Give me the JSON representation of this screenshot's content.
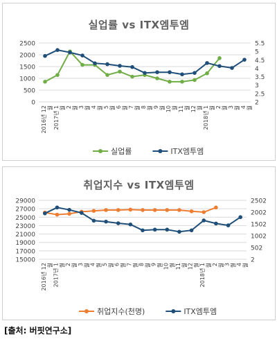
{
  "source_note": "[출처: 버핏연구소]",
  "chart_data": [
    {
      "type": "line",
      "title": "실업률 vs ITX엠투엠",
      "categories": [
        "2016년 12월",
        "2017년 1월",
        "2월",
        "3월",
        "4월",
        "5월",
        "6월",
        "7월",
        "8월",
        "9월",
        "10월",
        "11월",
        "12월",
        "2018년 1월",
        "2월",
        "3월",
        "4월"
      ],
      "tick_labels": [
        {
          "lines": [
            "2016년 12",
            "월"
          ]
        },
        {
          "lines": [
            "2017년 1",
            "월"
          ]
        },
        {
          "lines": [
            "2",
            "월"
          ]
        },
        {
          "lines": [
            "3",
            "월"
          ]
        },
        {
          "lines": [
            "4",
            "월"
          ]
        },
        {
          "lines": [
            "5",
            "월"
          ]
        },
        {
          "lines": [
            "6",
            "월"
          ]
        },
        {
          "lines": [
            "7",
            "월"
          ]
        },
        {
          "lines": [
            "8",
            "월"
          ]
        },
        {
          "lines": [
            "9",
            "월"
          ]
        },
        {
          "lines": [
            "10",
            "월"
          ]
        },
        {
          "lines": [
            "11",
            "월"
          ]
        },
        {
          "lines": [
            "12",
            "월"
          ]
        },
        {
          "lines": [
            "2018년 1",
            "월"
          ]
        },
        {
          "lines": [
            "2",
            "월"
          ]
        },
        {
          "lines": [
            "3",
            "월"
          ]
        },
        {
          "lines": [
            "4",
            "월"
          ]
        }
      ],
      "y_left": {
        "min": 0,
        "max": 2500,
        "ticks": [
          "0",
          "500",
          "1000",
          "1500",
          "2000",
          "2500"
        ]
      },
      "y_right": {
        "min": 2,
        "max": 5.5,
        "ticks": [
          "2",
          "2.5",
          "3",
          "3.5",
          "4",
          "4.5",
          "5",
          "5.5"
        ]
      },
      "series": [
        {
          "name": "실업률",
          "axis": "right",
          "color": "#70ad47",
          "values": [
            3.2,
            3.6,
            5.0,
            4.2,
            4.2,
            3.6,
            3.8,
            3.5,
            3.6,
            3.4,
            3.2,
            3.2,
            3.3,
            3.7,
            4.6,
            null,
            null
          ]
        },
        {
          "name": "ITX엠투엠",
          "axis": "left",
          "color": "#1f4e79",
          "values": [
            1950,
            2200,
            2100,
            1970,
            1640,
            1600,
            1530,
            1480,
            1230,
            1260,
            1260,
            1170,
            1230,
            1650,
            1520,
            1440,
            1790
          ]
        }
      ],
      "legend_position": "bottom",
      "grid": true
    },
    {
      "type": "line",
      "title": "취업지수 vs ITX엠투엠",
      "categories": [
        "2016년 12월",
        "2017년 1월",
        "2월",
        "3월",
        "4월",
        "5월",
        "6월",
        "7월",
        "8월",
        "9월",
        "10월",
        "11월",
        "12월",
        "2018년 1월",
        "2월",
        "3월",
        "4월"
      ],
      "tick_labels": [
        {
          "lines": [
            "2016년 12",
            "월"
          ]
        },
        {
          "lines": [
            "2017년 1",
            "월"
          ]
        },
        {
          "lines": [
            "2",
            "월"
          ]
        },
        {
          "lines": [
            "3",
            "월"
          ]
        },
        {
          "lines": [
            "4",
            "월"
          ]
        },
        {
          "lines": [
            "5",
            "월"
          ]
        },
        {
          "lines": [
            "6",
            "월"
          ]
        },
        {
          "lines": [
            "7",
            "월"
          ]
        },
        {
          "lines": [
            "8",
            "월"
          ]
        },
        {
          "lines": [
            "9",
            "월"
          ]
        },
        {
          "lines": [
            "10",
            "월"
          ]
        },
        {
          "lines": [
            "11",
            "월"
          ]
        },
        {
          "lines": [
            "12",
            "월"
          ]
        },
        {
          "lines": [
            "2018년 1",
            "월"
          ]
        },
        {
          "lines": [
            "2",
            "월"
          ]
        },
        {
          "lines": [
            "3",
            "월"
          ]
        },
        {
          "lines": [
            "4",
            "월"
          ]
        }
      ],
      "y_left": {
        "min": 15000,
        "max": 29000,
        "ticks": [
          "15000",
          "17000",
          "19000",
          "21000",
          "23000",
          "25000",
          "27000",
          "29000"
        ]
      },
      "y_right": {
        "min": 2,
        "max": 2502,
        "ticks": [
          "2",
          "502",
          "1002",
          "1502",
          "2002",
          "2502"
        ]
      },
      "series": [
        {
          "name": "취업지수(천명)",
          "axis": "left",
          "color": "#ed7d31",
          "values": [
            26100,
            25600,
            25800,
            26300,
            26500,
            26700,
            26700,
            26800,
            26700,
            26700,
            26700,
            26700,
            26400,
            26200,
            27300,
            null,
            null
          ]
        },
        {
          "name": "ITX엠투엠",
          "axis": "right",
          "color": "#1f4e79",
          "values": [
            1950,
            2200,
            2100,
            1970,
            1640,
            1600,
            1530,
            1480,
            1230,
            1260,
            1260,
            1170,
            1230,
            1650,
            1520,
            1440,
            1790
          ]
        }
      ],
      "legend_position": "bottom",
      "grid": true
    }
  ]
}
